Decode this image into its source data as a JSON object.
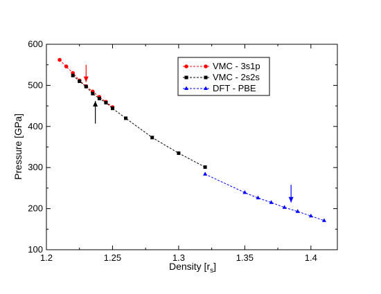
{
  "chart_data": {
    "type": "line",
    "title": "",
    "xlabel": "Density [r",
    "xlabel_sub": "s",
    "xlabel_end": "]",
    "ylabel": "Pressure [GPa]",
    "xlim": [
      1.2,
      1.42
    ],
    "ylim": [
      100,
      600
    ],
    "x_ticks": [
      "1.2",
      "1.25",
      "1.3",
      "1.35",
      "1.4"
    ],
    "y_ticks": [
      "100",
      "200",
      "300",
      "400",
      "500",
      "600"
    ],
    "grid": false,
    "legend_position": "top-right",
    "series": [
      {
        "name": "VMC - 3s1p",
        "color": "#ff0000",
        "marker": "circle",
        "x": [
          1.21,
          1.215,
          1.22,
          1.225,
          1.23,
          1.235,
          1.24,
          1.245,
          1.25
        ],
        "y": [
          562,
          546,
          530,
          512,
          498,
          485,
          472,
          460,
          447
        ]
      },
      {
        "name": "VMC - 2s2s",
        "color": "#000000",
        "marker": "square",
        "x": [
          1.22,
          1.225,
          1.23,
          1.235,
          1.24,
          1.245,
          1.25,
          1.26,
          1.28,
          1.3,
          1.32
        ],
        "y": [
          524,
          510,
          497,
          480,
          468,
          458,
          444,
          420,
          373,
          335,
          301
        ]
      },
      {
        "name": "DFT - PBE",
        "color": "#0000ff",
        "marker": "triangle",
        "x": [
          1.32,
          1.35,
          1.36,
          1.37,
          1.38,
          1.39,
          1.4,
          1.41
        ],
        "y": [
          284,
          239,
          226,
          215,
          203,
          193,
          182,
          171
        ]
      }
    ],
    "arrows": [
      {
        "color": "#ff0000",
        "x": 1.23,
        "y_from": 550,
        "y_to": 508
      },
      {
        "color": "#000000",
        "x": 1.237,
        "y_from": 407,
        "y_to": 462
      },
      {
        "color": "#0000ff",
        "x": 1.385,
        "y_from": 258,
        "y_to": 215
      }
    ]
  }
}
